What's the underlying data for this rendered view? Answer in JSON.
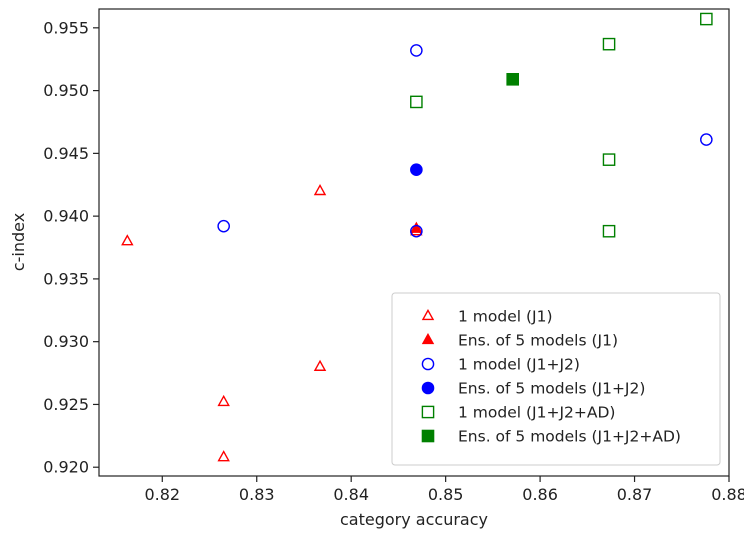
{
  "chart_data": {
    "type": "scatter",
    "title": "",
    "xlabel": "category accuracy",
    "ylabel": "c-index",
    "xlim": [
      0.8133,
      0.88
    ],
    "ylim": [
      0.9193,
      0.9565
    ],
    "xticks": [
      0.82,
      0.83,
      0.84,
      0.85,
      0.86,
      0.87,
      0.88
    ],
    "xtick_labels": [
      "0.82",
      "0.83",
      "0.84",
      "0.85",
      "0.86",
      "0.87",
      "0.88"
    ],
    "yticks": [
      0.92,
      0.925,
      0.93,
      0.935,
      0.94,
      0.945,
      0.95,
      0.955
    ],
    "ytick_labels": [
      "0.920",
      "0.925",
      "0.930",
      "0.935",
      "0.940",
      "0.945",
      "0.950",
      "0.955"
    ],
    "grid": false,
    "legend_position": "bottom-right",
    "series": [
      {
        "name": "1 model (J1)",
        "marker": "triangle-open",
        "color": "#ff0000",
        "points": [
          {
            "x": 0.8163,
            "y": 0.938
          },
          {
            "x": 0.8265,
            "y": 0.9252
          },
          {
            "x": 0.8265,
            "y": 0.9208
          },
          {
            "x": 0.8367,
            "y": 0.942
          },
          {
            "x": 0.8367,
            "y": 0.928
          },
          {
            "x": 0.8469,
            "y": 0.9388
          }
        ]
      },
      {
        "name": "Ens. of 5 models (J1)",
        "marker": "triangle-filled",
        "color": "#ff0000",
        "points": [
          {
            "x": 0.8469,
            "y": 0.939
          }
        ]
      },
      {
        "name": "1 model (J1+J2)",
        "marker": "circle-open",
        "color": "#0000ff",
        "points": [
          {
            "x": 0.8265,
            "y": 0.9392
          },
          {
            "x": 0.8469,
            "y": 0.9532
          },
          {
            "x": 0.8469,
            "y": 0.9388
          },
          {
            "x": 0.8776,
            "y": 0.9461
          }
        ]
      },
      {
        "name": "Ens. of 5 models (J1+J2)",
        "marker": "circle-filled",
        "color": "#0000ff",
        "points": [
          {
            "x": 0.8469,
            "y": 0.9437
          }
        ]
      },
      {
        "name": "1 model (J1+J2+AD)",
        "marker": "square-open",
        "color": "#008000",
        "points": [
          {
            "x": 0.8469,
            "y": 0.9491
          },
          {
            "x": 0.8673,
            "y": 0.9537
          },
          {
            "x": 0.8673,
            "y": 0.9445
          },
          {
            "x": 0.8673,
            "y": 0.9388
          },
          {
            "x": 0.8776,
            "y": 0.9557
          }
        ]
      },
      {
        "name": "Ens. of 5 models (J1+J2+AD)",
        "marker": "square-filled",
        "color": "#008000",
        "points": [
          {
            "x": 0.8571,
            "y": 0.9509
          }
        ]
      }
    ]
  }
}
